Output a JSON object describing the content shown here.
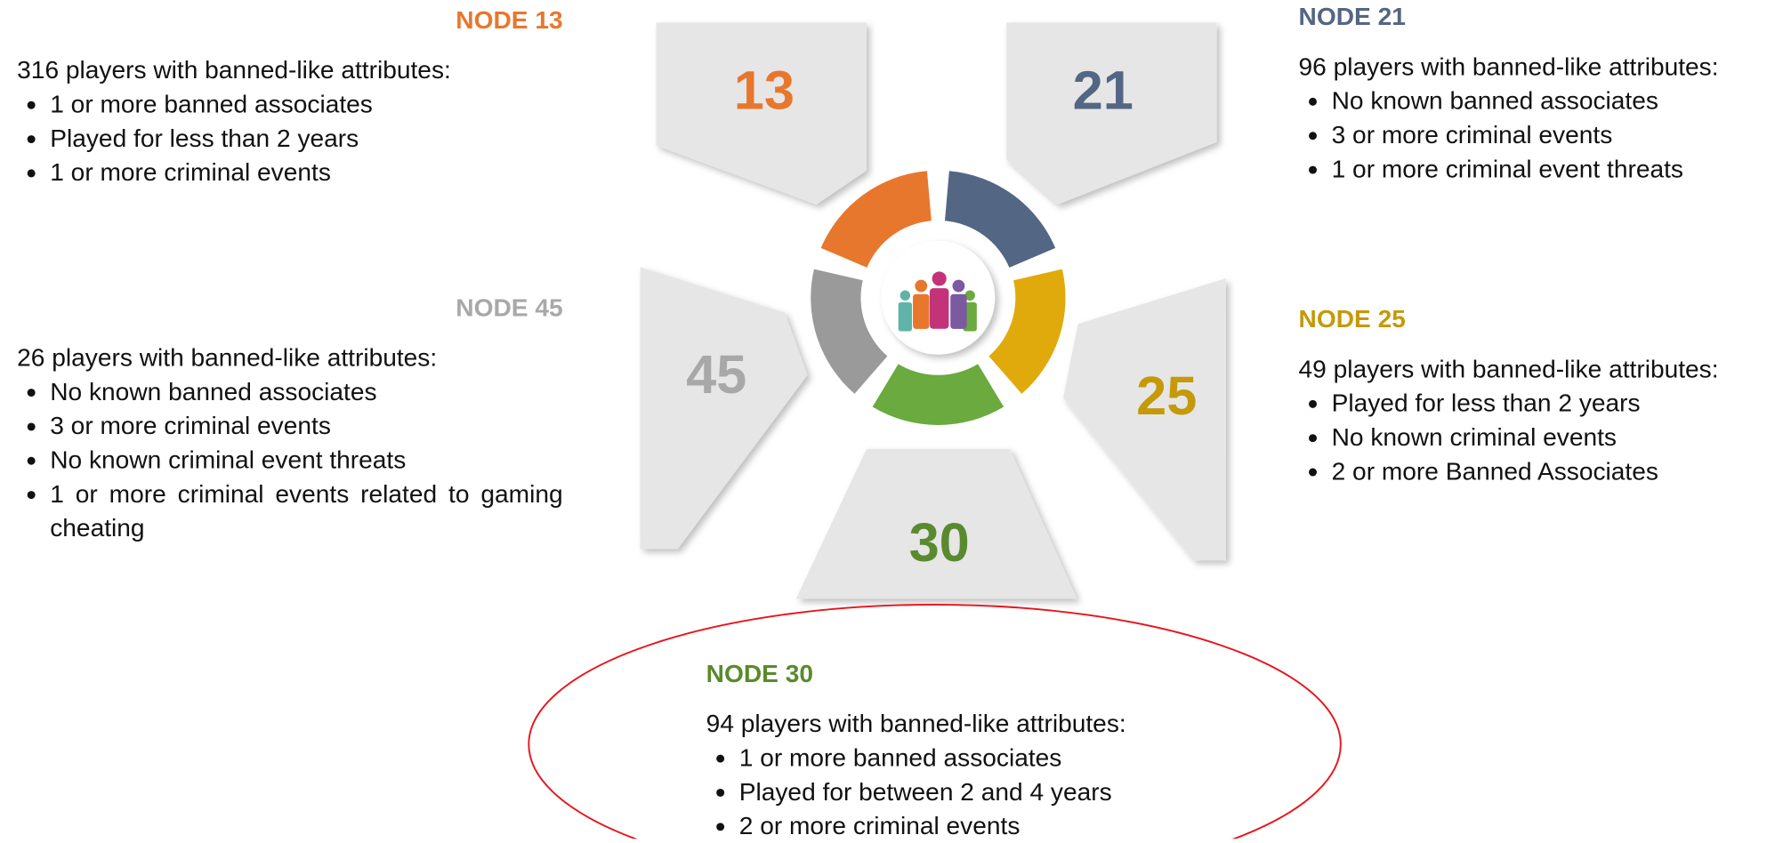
{
  "nodes": [
    {
      "title": "NODE 13",
      "number": "13",
      "summary": "316 players with banned-like attributes:",
      "bullets": [
        "1 or more banned associates",
        "Played for less than 2 years",
        "1 or more criminal events"
      ]
    },
    {
      "title": "NODE 21",
      "number": "21",
      "summary": "96 players with banned-like attributes:",
      "bullets": [
        "No known banned associates",
        "3 or more criminal events",
        "1 or more criminal event threats"
      ]
    },
    {
      "title": "NODE 45",
      "number": "45",
      "summary": "26 players with banned-like attributes:",
      "bullets": [
        "No known banned associates",
        "3 or more criminal events",
        "No known criminal event threats",
        "1 or more criminal events related to gaming cheating"
      ]
    },
    {
      "title": "NODE 25",
      "number": "25",
      "summary": "49 players with banned-like attributes:",
      "bullets": [
        "Played for less than 2 years",
        "No known criminal events",
        "2 or more Banned Associates"
      ]
    },
    {
      "title": "NODE 30",
      "number": "30",
      "summary": "94 players with banned-like attributes:",
      "bullets": [
        "1 or more banned associates",
        "Played for between 2 and 4 years",
        "2 or more criminal events"
      ]
    }
  ]
}
